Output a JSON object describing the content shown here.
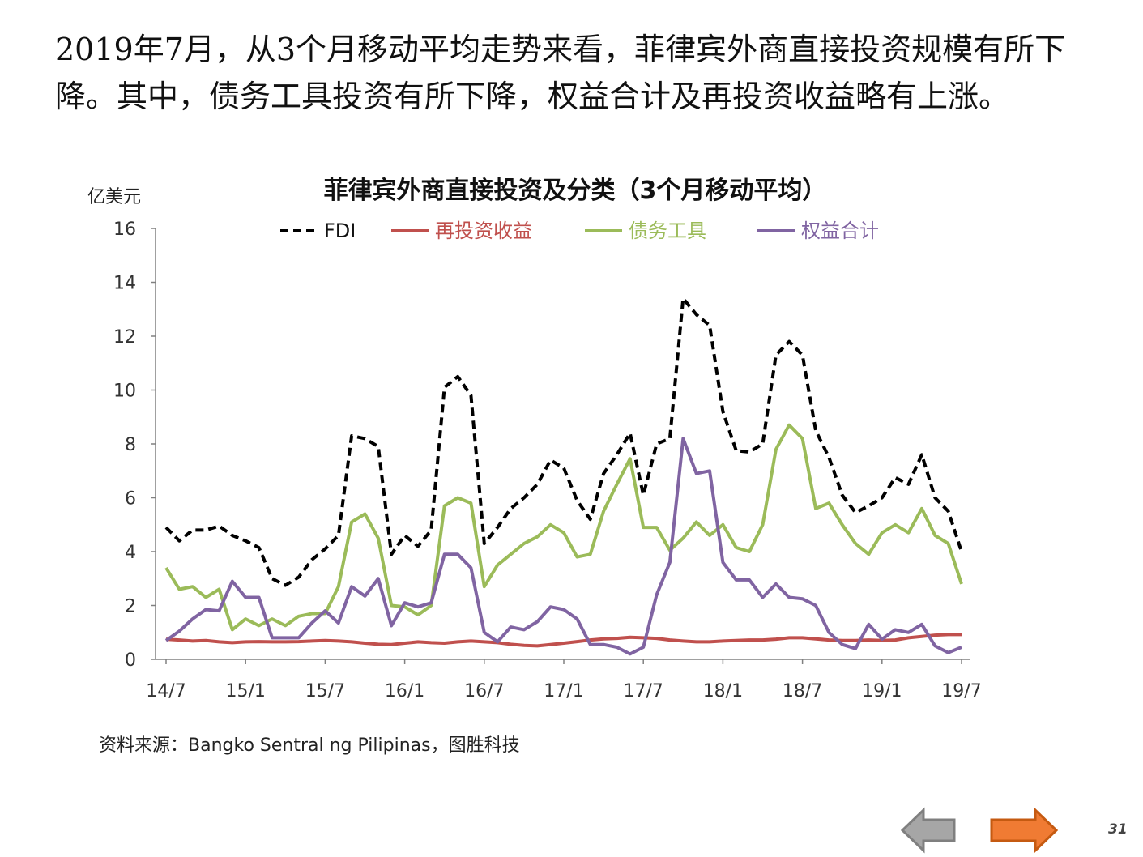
{
  "intro": "2019年7月，从3个月移动平均走势来看，菲律宾外商直接投资规模有所下降。其中，债务工具投资有所下降，权益合计及再投资收益略有上涨。",
  "source": "资料来源：Bangko Sentral ng Pilipinas，图胜科技",
  "page_number": "31",
  "nav": {
    "prev_icon": "arrow-left-icon",
    "next_icon": "arrow-right-icon",
    "prev_color": "#a6a6a6",
    "next_color": "#f07b33"
  },
  "chart_data": {
    "type": "line",
    "title": "菲律宾外商直接投资及分类（3个月移动平均）",
    "ylabel": "亿美元",
    "xlabel": "",
    "ylim": [
      0,
      16
    ],
    "yticks": [
      0,
      2,
      4,
      6,
      8,
      10,
      12,
      14,
      16
    ],
    "xtick_labels": [
      "14/7",
      "15/1",
      "15/7",
      "16/1",
      "16/7",
      "17/1",
      "17/7",
      "18/1",
      "18/7",
      "19/1",
      "19/7"
    ],
    "legend_position": "top",
    "grid": false,
    "series": [
      {
        "name": "FDI",
        "color": "#000000",
        "dash": true,
        "values": [
          4.9,
          4.4,
          4.8,
          4.8,
          4.95,
          4.6,
          4.4,
          4.15,
          3.0,
          2.75,
          3.05,
          3.7,
          4.1,
          4.6,
          8.3,
          8.2,
          7.9,
          3.9,
          4.6,
          4.2,
          4.8,
          10.1,
          10.5,
          9.8,
          4.3,
          4.9,
          5.6,
          6.0,
          6.5,
          7.4,
          7.1,
          5.9,
          5.2,
          6.9,
          7.6,
          8.4,
          6.1,
          8.0,
          8.2,
          13.4,
          12.8,
          12.4,
          9.2,
          7.75,
          7.7,
          8.0,
          11.3,
          11.8,
          11.3,
          8.5,
          7.5,
          6.1,
          5.45,
          5.7,
          6.0,
          6.75,
          6.5,
          7.6,
          6.0,
          5.5,
          4.0
        ]
      },
      {
        "name": "再投资收益",
        "color": "#c0504d",
        "dash": false,
        "values": [
          0.75,
          0.72,
          0.68,
          0.7,
          0.65,
          0.62,
          0.65,
          0.66,
          0.65,
          0.65,
          0.66,
          0.68,
          0.7,
          0.68,
          0.65,
          0.6,
          0.56,
          0.55,
          0.6,
          0.65,
          0.62,
          0.6,
          0.65,
          0.68,
          0.65,
          0.62,
          0.56,
          0.52,
          0.5,
          0.55,
          0.6,
          0.66,
          0.72,
          0.76,
          0.78,
          0.82,
          0.8,
          0.78,
          0.72,
          0.68,
          0.65,
          0.65,
          0.68,
          0.7,
          0.72,
          0.72,
          0.75,
          0.8,
          0.8,
          0.76,
          0.72,
          0.7,
          0.7,
          0.72,
          0.7,
          0.72,
          0.8,
          0.85,
          0.9,
          0.92,
          0.92
        ]
      },
      {
        "name": "债务工具",
        "color": "#9bbb59",
        "dash": false,
        "values": [
          3.4,
          2.6,
          2.7,
          2.3,
          2.6,
          1.1,
          1.5,
          1.25,
          1.5,
          1.25,
          1.6,
          1.7,
          1.7,
          2.7,
          5.1,
          5.4,
          4.5,
          2.0,
          1.95,
          1.65,
          2.0,
          5.7,
          6.0,
          5.8,
          2.7,
          3.5,
          3.9,
          4.3,
          4.55,
          5.0,
          4.7,
          3.8,
          3.9,
          5.5,
          6.5,
          7.45,
          4.9,
          4.9,
          4.05,
          4.5,
          5.1,
          4.6,
          5.0,
          4.15,
          4.0,
          5.0,
          7.8,
          8.7,
          8.2,
          5.6,
          5.8,
          5.0,
          4.3,
          3.9,
          4.7,
          5.0,
          4.7,
          5.6,
          4.6,
          4.3,
          2.8
        ]
      },
      {
        "name": "权益合计",
        "color": "#8064a2",
        "dash": false,
        "values": [
          0.7,
          1.05,
          1.5,
          1.85,
          1.8,
          2.9,
          2.3,
          2.3,
          0.8,
          0.8,
          0.8,
          1.35,
          1.8,
          1.35,
          2.7,
          2.35,
          3.0,
          1.25,
          2.1,
          1.95,
          2.1,
          3.9,
          3.9,
          3.4,
          1.0,
          0.65,
          1.2,
          1.1,
          1.4,
          1.95,
          1.85,
          1.5,
          0.55,
          0.55,
          0.45,
          0.2,
          0.45,
          2.4,
          3.6,
          8.2,
          6.9,
          7.0,
          3.6,
          2.95,
          2.95,
          2.3,
          2.8,
          2.3,
          2.25,
          2.0,
          1.0,
          0.55,
          0.4,
          1.3,
          0.75,
          1.1,
          1.0,
          1.3,
          0.5,
          0.25,
          0.45
        ]
      }
    ]
  }
}
